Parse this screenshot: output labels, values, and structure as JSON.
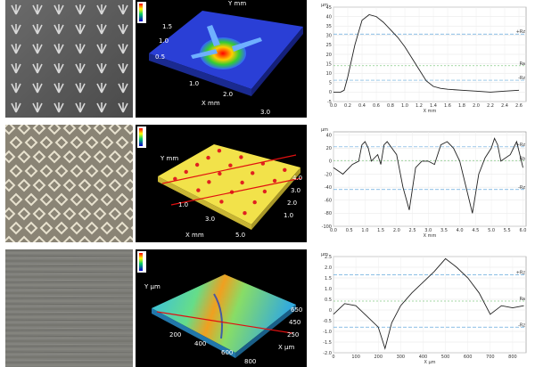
{
  "panels": [
    {
      "id": "row1",
      "photo": "micro-dimple-photo",
      "map": {
        "x_label": "X mm",
        "y_label": "Y mm",
        "x_ticks": [
          "1.0",
          "2.0",
          "3.0"
        ],
        "y_ticks": [
          "0.5",
          "1.0",
          "1.5"
        ]
      },
      "profile": {
        "unit": "µm",
        "x_label": "X mm",
        "x_ticks": [
          "0.0",
          "0.2",
          "0.4",
          "0.6",
          "0.8",
          "1.0",
          "1.2",
          "1.4",
          "1.6",
          "1.8",
          "2.0",
          "2.2",
          "2.4",
          "2.6"
        ],
        "y_ticks": [
          "45",
          "40",
          "35",
          "30",
          "25",
          "20",
          "15",
          "10",
          "5",
          "0",
          "-5"
        ],
        "ref_labels": [
          "+Rz",
          "Ra",
          "-Rz"
        ]
      }
    },
    {
      "id": "row2",
      "photo": "knurled-texture-photo",
      "map": {
        "x_label": "X mm",
        "y_label": "Y mm",
        "x_ticks": [
          "1.0",
          "3.0",
          "5.0"
        ],
        "y_ticks": [
          "1.0",
          "2.0",
          "3.0",
          "4.0"
        ]
      },
      "profile": {
        "unit": "µm",
        "x_label": "X mm",
        "x_ticks": [
          "0.0",
          "0.5",
          "1.0",
          "1.5",
          "2.0",
          "2.5",
          "3.0",
          "3.5",
          "4.0",
          "4.5",
          "5.0",
          "5.5",
          "6.0"
        ],
        "y_ticks": [
          "40",
          "20",
          "0",
          "-20",
          "-40",
          "-60",
          "-80",
          "-100"
        ],
        "ref_labels": [
          "+Rz",
          "Ra",
          "-Rz"
        ]
      }
    },
    {
      "id": "row3",
      "photo": "ground-surface-photo",
      "map": {
        "x_label": "X µm",
        "y_label": "Y µm",
        "x_ticks": [
          "200",
          "400",
          "600",
          "800"
        ],
        "y_ticks": [
          "250",
          "450",
          "650"
        ]
      },
      "profile": {
        "unit": "µm",
        "x_label": "X µm",
        "x_ticks": [
          "0",
          "100",
          "200",
          "300",
          "400",
          "500",
          "600",
          "700",
          "800"
        ],
        "y_ticks": [
          "2.5",
          "2.0",
          "1.5",
          "1.0",
          "0.5",
          "0",
          "-0.5",
          "-1.0",
          "-1.5",
          "-2.0"
        ],
        "ref_labels": [
          "+Rz",
          "Ra",
          "-Rz"
        ]
      }
    }
  ],
  "chart_data": [
    {
      "type": "line",
      "x": [
        0.0,
        0.1,
        0.15,
        0.2,
        0.3,
        0.4,
        0.5,
        0.6,
        0.7,
        0.8,
        0.9,
        1.0,
        1.1,
        1.2,
        1.3,
        1.4,
        1.5,
        1.6,
        1.8,
        2.0,
        2.2,
        2.4,
        2.6
      ],
      "values": [
        0,
        0,
        1,
        8,
        25,
        38,
        41,
        40,
        37,
        33,
        29,
        24,
        18,
        12,
        6,
        3,
        2,
        1.5,
        1,
        0.5,
        0,
        0.5,
        1
      ],
      "ylim": [
        -5,
        45
      ],
      "xlim": [
        0,
        2.7
      ],
      "xlabel": "X mm",
      "ylabel": "µm"
    },
    {
      "type": "line",
      "x": [
        0.0,
        0.3,
        0.6,
        0.8,
        0.9,
        1.0,
        1.1,
        1.2,
        1.4,
        1.5,
        1.6,
        1.7,
        2.0,
        2.2,
        2.4,
        2.6,
        2.8,
        3.0,
        3.2,
        3.4,
        3.6,
        3.8,
        4.0,
        4.2,
        4.4,
        4.6,
        4.8,
        5.0,
        5.1,
        5.2,
        5.3,
        5.6,
        5.8,
        6.0
      ],
      "values": [
        -10,
        -20,
        -5,
        0,
        25,
        30,
        20,
        0,
        10,
        -5,
        25,
        30,
        10,
        -40,
        -75,
        -10,
        0,
        0,
        -5,
        25,
        30,
        20,
        0,
        -40,
        -80,
        -20,
        5,
        20,
        35,
        25,
        0,
        10,
        30,
        -10
      ],
      "ylim": [
        -100,
        45
      ],
      "xlim": [
        0,
        6.1
      ],
      "xlabel": "X mm",
      "ylabel": "µm"
    },
    {
      "type": "line",
      "x": [
        0,
        50,
        100,
        150,
        200,
        230,
        260,
        300,
        350,
        400,
        450,
        500,
        550,
        600,
        650,
        700,
        750,
        800,
        850
      ],
      "values": [
        -0.2,
        0.3,
        0.2,
        -0.3,
        -0.8,
        -1.8,
        -0.6,
        0.2,
        0.8,
        1.3,
        1.8,
        2.4,
        2.0,
        1.5,
        0.8,
        -0.2,
        0.2,
        0.1,
        0.2
      ],
      "ylim": [
        -2.0,
        2.5
      ],
      "xlim": [
        0,
        860
      ],
      "xlabel": "X µm",
      "ylabel": "µm"
    }
  ]
}
